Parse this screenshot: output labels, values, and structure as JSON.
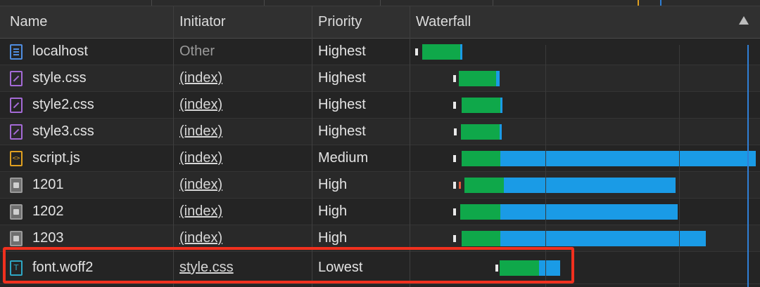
{
  "columns": {
    "name": "Name",
    "initiator": "Initiator",
    "priority": "Priority",
    "waterfall": "Waterfall"
  },
  "rows": [
    {
      "name": "localhost",
      "initiator": "Other",
      "priority": "Highest",
      "icon": "document-icon",
      "initiator_link": false
    },
    {
      "name": "style.css",
      "initiator": "(index)",
      "priority": "Highest",
      "icon": "stylesheet-icon",
      "initiator_link": true
    },
    {
      "name": "style2.css",
      "initiator": "(index)",
      "priority": "Highest",
      "icon": "stylesheet-icon",
      "initiator_link": true
    },
    {
      "name": "style3.css",
      "initiator": "(index)",
      "priority": "Highest",
      "icon": "stylesheet-icon",
      "initiator_link": true
    },
    {
      "name": "script.js",
      "initiator": "(index)",
      "priority": "Medium",
      "icon": "script-icon",
      "initiator_link": true
    },
    {
      "name": "1201",
      "initiator": "(index)",
      "priority": "High",
      "icon": "image-icon",
      "initiator_link": true
    },
    {
      "name": "1202",
      "initiator": "(index)",
      "priority": "High",
      "icon": "image-icon",
      "initiator_link": true
    },
    {
      "name": "1203",
      "initiator": "(index)",
      "priority": "High",
      "icon": "image-icon",
      "initiator_link": true
    },
    {
      "name": "font.woff2",
      "initiator": "style.css",
      "priority": "Lowest",
      "icon": "font-icon",
      "initiator_link": true
    }
  ],
  "colors": {
    "waiting": "#0fa84a",
    "download": "#1a9be6",
    "highlight": "#f0301e"
  }
}
